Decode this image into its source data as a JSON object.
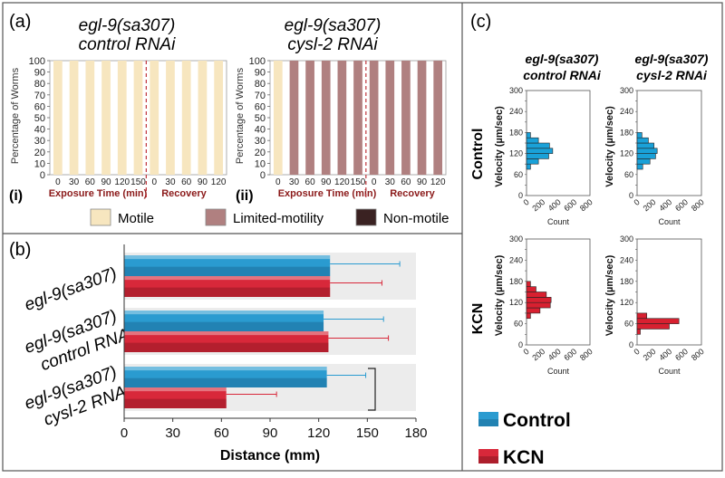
{
  "colors": {
    "motile": "#f7e6bf",
    "limited": "#b08080",
    "nonmotile": "#3a2222",
    "control": "#2a9bd0",
    "kcn": "#d8283a",
    "hist_control": "#1aa1d8",
    "hist_kcn": "#d82030",
    "axis_red": "#8b1a1a"
  },
  "panel_a": {
    "label": "(a)",
    "legend": [
      "Motile",
      "Limited-motility",
      "Non-motile"
    ],
    "ylabel": "Percentage of Worms",
    "xlabel_exposure": "Exposure Time (min)",
    "xlabel_recovery": "Recovery",
    "subpanels": [
      {
        "roman": "(i)",
        "title1": "egl-9(sa307)",
        "title2": "control RNAi"
      },
      {
        "roman": "(ii)",
        "title1": "egl-9(sa307)",
        "title2": "cysl-2 RNAi"
      }
    ]
  },
  "panel_b": {
    "label": "(b)",
    "xlabel": "Distance (mm)",
    "significance": "*",
    "group_labels": [
      {
        "line1": "egl-9(sa307)",
        "line2": ""
      },
      {
        "line1": "egl-9(sa307)",
        "line2": "control RNAi"
      },
      {
        "line1": "egl-9(sa307)",
        "line2": "cysl-2 RNAi"
      }
    ],
    "legend": [
      "Control",
      "KCN"
    ]
  },
  "panel_c": {
    "label": "(c)",
    "col_titles": [
      {
        "line1": "egl-9(sa307)",
        "line2": "control RNAi"
      },
      {
        "line1": "egl-9(sa307)",
        "line2": "cysl-2 RNAi"
      }
    ],
    "row_labels": [
      "Control",
      "KCN"
    ],
    "ylabel": "Velocity (µm/sec)",
    "xlabel": "Count"
  },
  "chart_data": [
    {
      "type": "bar",
      "panel": "a-i",
      "stacked": true,
      "categories": [
        "0",
        "30",
        "60",
        "90",
        "120",
        "150",
        "0",
        "30",
        "60",
        "90",
        "120"
      ],
      "series": [
        {
          "name": "Motile",
          "values": [
            100,
            100,
            100,
            100,
            100,
            100,
            100,
            100,
            100,
            100,
            100
          ]
        },
        {
          "name": "Limited-motility",
          "values": [
            0,
            0,
            0,
            0,
            0,
            0,
            0,
            0,
            0,
            0,
            0
          ]
        },
        {
          "name": "Non-motile",
          "values": [
            0,
            0,
            0,
            0,
            0,
            0,
            0,
            0,
            0,
            0,
            0
          ]
        }
      ],
      "ylim": [
        0,
        100
      ],
      "yticks": [
        0,
        10,
        20,
        30,
        40,
        50,
        60,
        70,
        80,
        90,
        100
      ]
    },
    {
      "type": "bar",
      "panel": "a-ii",
      "stacked": true,
      "categories": [
        "0",
        "30",
        "60",
        "90",
        "120",
        "150",
        "0",
        "30",
        "60",
        "90",
        "120"
      ],
      "series": [
        {
          "name": "Motile",
          "values": [
            100,
            0,
            0,
            0,
            0,
            0,
            0,
            0,
            0,
            0,
            0
          ]
        },
        {
          "name": "Limited-motility",
          "values": [
            0,
            100,
            100,
            100,
            100,
            100,
            100,
            100,
            100,
            100,
            100
          ]
        },
        {
          "name": "Non-motile",
          "values": [
            0,
            0,
            0,
            0,
            0,
            0,
            0,
            0,
            0,
            0,
            0
          ]
        }
      ],
      "ylim": [
        0,
        100
      ],
      "yticks": [
        0,
        10,
        20,
        30,
        40,
        50,
        60,
        70,
        80,
        90,
        100
      ]
    },
    {
      "type": "bar",
      "panel": "b",
      "orientation": "horizontal",
      "categories": [
        "egl-9(sa307)",
        "egl-9(sa307) control RNAi",
        "egl-9(sa307) cysl-2 RNAi"
      ],
      "series": [
        {
          "name": "Control",
          "values": [
            127,
            123,
            125
          ],
          "errors": [
            43,
            37,
            24
          ]
        },
        {
          "name": "KCN",
          "values": [
            127,
            126,
            63
          ],
          "errors": [
            32,
            37,
            31
          ]
        }
      ],
      "xlim": [
        0,
        180
      ],
      "xticks": [
        0,
        30,
        60,
        90,
        120,
        150,
        180
      ]
    },
    {
      "type": "bar",
      "panel": "c",
      "orientation": "horizontal-histogram",
      "xlim": [
        0,
        800
      ],
      "xticks": [
        0,
        200,
        400,
        600,
        800
      ],
      "ylim": [
        0,
        300
      ],
      "yticks": [
        0,
        30,
        60,
        90,
        120,
        150,
        180,
        210,
        240,
        270,
        300
      ],
      "histograms": [
        {
          "row": "Control",
          "col": "control RNAi",
          "bins": [
            [
              75,
              90,
              50
            ],
            [
              90,
              105,
              150
            ],
            [
              105,
              120,
              280
            ],
            [
              120,
              135,
              330
            ],
            [
              135,
              150,
              290
            ],
            [
              150,
              165,
              150
            ],
            [
              165,
              180,
              50
            ]
          ]
        },
        {
          "row": "Control",
          "col": "cysl-2 RNAi",
          "bins": [
            [
              75,
              90,
              70
            ],
            [
              90,
              105,
              160
            ],
            [
              105,
              120,
              230
            ],
            [
              120,
              135,
              250
            ],
            [
              135,
              150,
              210
            ],
            [
              150,
              165,
              140
            ],
            [
              165,
              180,
              60
            ]
          ]
        },
        {
          "row": "KCN",
          "col": "control RNAi",
          "bins": [
            [
              75,
              90,
              50
            ],
            [
              90,
              105,
              170
            ],
            [
              105,
              120,
              300
            ],
            [
              120,
              135,
              310
            ],
            [
              135,
              150,
              250
            ],
            [
              150,
              165,
              120
            ],
            [
              165,
              180,
              50
            ]
          ]
        },
        {
          "row": "KCN",
          "col": "cysl-2 RNAi",
          "bins": [
            [
              30,
              45,
              40
            ],
            [
              45,
              60,
              400
            ],
            [
              60,
              75,
              520
            ],
            [
              75,
              90,
              120
            ]
          ]
        }
      ]
    }
  ]
}
